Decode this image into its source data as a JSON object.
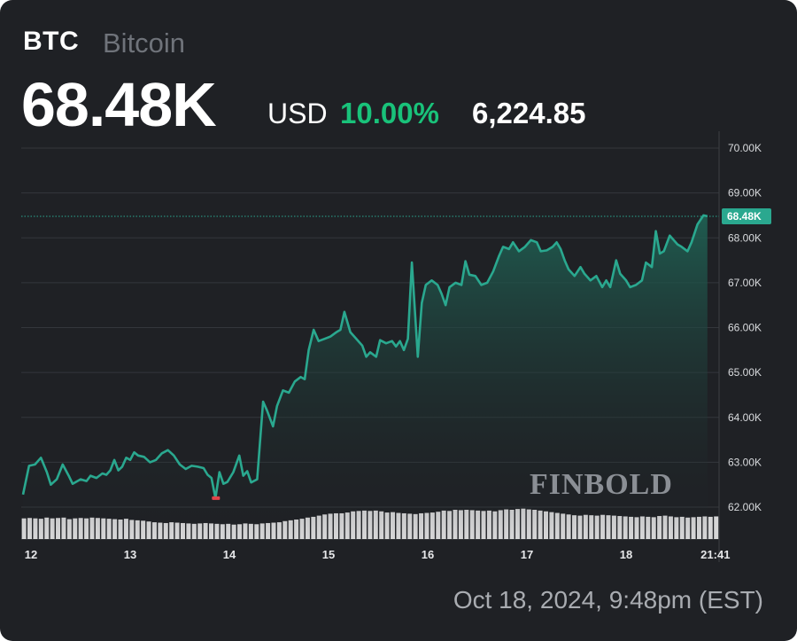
{
  "header": {
    "symbol": "BTC",
    "name": "Bitcoin",
    "price": "68.48K",
    "currency": "USD",
    "change_pct": "10.00%",
    "change_abs": "6,224.85"
  },
  "footer": {
    "timestamp": "Oct 18, 2024, 9:48pm (EST)"
  },
  "watermark": "FINBOLD",
  "colors": {
    "background": "#1f2125",
    "line": "#2aa88f",
    "area_top": "#1f5f52",
    "positive": "#19c27a",
    "low_marker": "#e0454a",
    "volume": "#e6e6e6"
  },
  "chart_data": {
    "type": "area",
    "y_axis": {
      "ticks": [
        62000,
        63000,
        64000,
        65000,
        66000,
        67000,
        68000,
        69000,
        70000
      ],
      "tick_labels": [
        "62.00K",
        "63.00K",
        "64.00K",
        "65.00K",
        "66.00K",
        "67.00K",
        "68.00K",
        "69.00K",
        "70.00K"
      ],
      "position": "right"
    },
    "x_axis": {
      "tick_labels": [
        "12",
        "13",
        "14",
        "15",
        "16",
        "17",
        "18",
        "21:41"
      ],
      "tick_days": [
        0,
        1,
        2,
        3,
        4,
        5,
        6,
        6.9
      ]
    },
    "last_value": 68480,
    "last_value_label": "68.48K",
    "low_marker_day": 1.86,
    "grid": true,
    "series": [
      {
        "points": [
          [
            -0.08,
            62280
          ],
          [
            -0.02,
            62920
          ],
          [
            0.04,
            62950
          ],
          [
            0.1,
            63100
          ],
          [
            0.16,
            62780
          ],
          [
            0.2,
            62500
          ],
          [
            0.26,
            62620
          ],
          [
            0.32,
            62950
          ],
          [
            0.38,
            62700
          ],
          [
            0.42,
            62520
          ],
          [
            0.5,
            62620
          ],
          [
            0.56,
            62580
          ],
          [
            0.6,
            62700
          ],
          [
            0.66,
            62650
          ],
          [
            0.72,
            62750
          ],
          [
            0.76,
            62720
          ],
          [
            0.8,
            62820
          ],
          [
            0.84,
            63050
          ],
          [
            0.88,
            62820
          ],
          [
            0.92,
            62900
          ],
          [
            0.96,
            63100
          ],
          [
            1.0,
            63050
          ],
          [
            1.04,
            63220
          ],
          [
            1.08,
            63150
          ],
          [
            1.14,
            63120
          ],
          [
            1.2,
            63000
          ],
          [
            1.26,
            63050
          ],
          [
            1.32,
            63200
          ],
          [
            1.38,
            63270
          ],
          [
            1.44,
            63150
          ],
          [
            1.5,
            62950
          ],
          [
            1.56,
            62850
          ],
          [
            1.62,
            62920
          ],
          [
            1.68,
            62900
          ],
          [
            1.74,
            62870
          ],
          [
            1.78,
            62720
          ],
          [
            1.82,
            62650
          ],
          [
            1.86,
            62200
          ],
          [
            1.9,
            62780
          ],
          [
            1.94,
            62520
          ],
          [
            1.98,
            62560
          ],
          [
            2.04,
            62780
          ],
          [
            2.1,
            63150
          ],
          [
            2.14,
            62700
          ],
          [
            2.18,
            62800
          ],
          [
            2.22,
            62550
          ],
          [
            2.28,
            62620
          ],
          [
            2.34,
            64350
          ],
          [
            2.38,
            64150
          ],
          [
            2.44,
            63800
          ],
          [
            2.48,
            64250
          ],
          [
            2.54,
            64600
          ],
          [
            2.6,
            64550
          ],
          [
            2.66,
            64800
          ],
          [
            2.72,
            64900
          ],
          [
            2.76,
            64850
          ],
          [
            2.8,
            65500
          ],
          [
            2.85,
            65950
          ],
          [
            2.9,
            65700
          ],
          [
            2.96,
            65750
          ],
          [
            3.02,
            65800
          ],
          [
            3.08,
            65900
          ],
          [
            3.12,
            65950
          ],
          [
            3.16,
            66350
          ],
          [
            3.22,
            65900
          ],
          [
            3.28,
            65750
          ],
          [
            3.34,
            65600
          ],
          [
            3.38,
            65350
          ],
          [
            3.42,
            65450
          ],
          [
            3.48,
            65350
          ],
          [
            3.52,
            65720
          ],
          [
            3.58,
            65650
          ],
          [
            3.64,
            65700
          ],
          [
            3.68,
            65580
          ],
          [
            3.72,
            65700
          ],
          [
            3.76,
            65500
          ],
          [
            3.8,
            65750
          ],
          [
            3.84,
            67450
          ],
          [
            3.9,
            65350
          ],
          [
            3.94,
            66550
          ],
          [
            3.98,
            66950
          ],
          [
            4.04,
            67050
          ],
          [
            4.1,
            66950
          ],
          [
            4.14,
            66750
          ],
          [
            4.18,
            66500
          ],
          [
            4.22,
            66900
          ],
          [
            4.28,
            67000
          ],
          [
            4.34,
            66950
          ],
          [
            4.38,
            67480
          ],
          [
            4.42,
            67180
          ],
          [
            4.48,
            67150
          ],
          [
            4.54,
            66950
          ],
          [
            4.6,
            67000
          ],
          [
            4.66,
            67250
          ],
          [
            4.72,
            67600
          ],
          [
            4.76,
            67800
          ],
          [
            4.82,
            67750
          ],
          [
            4.86,
            67900
          ],
          [
            4.92,
            67700
          ],
          [
            4.98,
            67800
          ],
          [
            5.04,
            67950
          ],
          [
            5.1,
            67900
          ],
          [
            5.14,
            67700
          ],
          [
            5.2,
            67720
          ],
          [
            5.26,
            67800
          ],
          [
            5.3,
            67900
          ],
          [
            5.34,
            67750
          ],
          [
            5.38,
            67500
          ],
          [
            5.42,
            67300
          ],
          [
            5.48,
            67150
          ],
          [
            5.54,
            67350
          ],
          [
            5.58,
            67200
          ],
          [
            5.64,
            67050
          ],
          [
            5.7,
            67150
          ],
          [
            5.76,
            66900
          ],
          [
            5.8,
            67050
          ],
          [
            5.84,
            66900
          ],
          [
            5.9,
            67500
          ],
          [
            5.94,
            67200
          ],
          [
            6.0,
            67050
          ],
          [
            6.04,
            66900
          ],
          [
            6.1,
            66950
          ],
          [
            6.16,
            67050
          ],
          [
            6.2,
            67450
          ],
          [
            6.26,
            67350
          ],
          [
            6.3,
            68150
          ],
          [
            6.34,
            67650
          ],
          [
            6.38,
            67700
          ],
          [
            6.44,
            68050
          ],
          [
            6.48,
            67950
          ],
          [
            6.52,
            67850
          ],
          [
            6.56,
            67800
          ],
          [
            6.62,
            67700
          ],
          [
            6.66,
            67900
          ],
          [
            6.72,
            68300
          ],
          [
            6.78,
            68500
          ],
          [
            6.82,
            68480
          ]
        ]
      }
    ],
    "volume": [
      53,
      54,
      53,
      52,
      55,
      53,
      54,
      55,
      51,
      53,
      54,
      53,
      55,
      54,
      53,
      52,
      51,
      50,
      52,
      49,
      48,
      47,
      45,
      43,
      42,
      41,
      43,
      42,
      41,
      40,
      39,
      40,
      41,
      40,
      39,
      38,
      39,
      37,
      38,
      40,
      39,
      38,
      40,
      41,
      42,
      43,
      46,
      48,
      50,
      52,
      55,
      57,
      60,
      63,
      65,
      66,
      66,
      68,
      71,
      72,
      73,
      72,
      73,
      71,
      68,
      69,
      67,
      66,
      65,
      64,
      66,
      67,
      68,
      70,
      73,
      72,
      75,
      74,
      75,
      74,
      73,
      72,
      73,
      71,
      74,
      76,
      75,
      77,
      78,
      76,
      75,
      73,
      71,
      69,
      67,
      65,
      63,
      61,
      60,
      62,
      61,
      60,
      62,
      61,
      60,
      59,
      58,
      57,
      56,
      58,
      57,
      56,
      59,
      60,
      58,
      56,
      57,
      55,
      56,
      57,
      58,
      57,
      58
    ]
  }
}
